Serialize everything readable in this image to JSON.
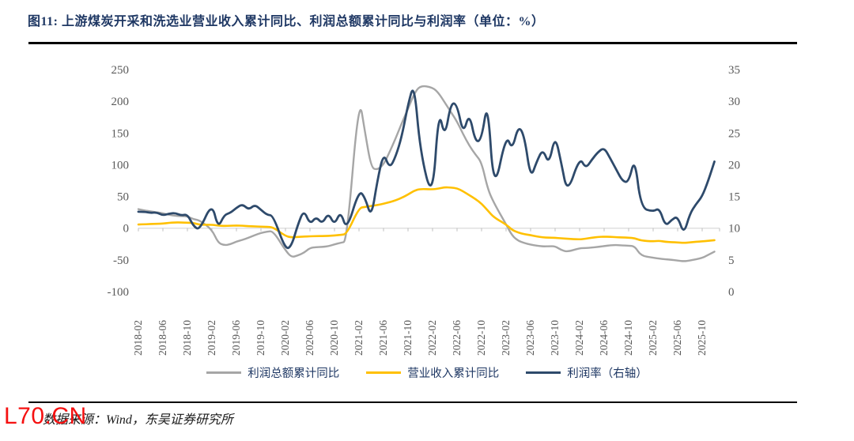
{
  "figure": {
    "title": "图11:  上游煤炭开采和洗选业营业收入累计同比、利润总额累计同比与利润率（单位：%）",
    "title_color": "#1f3864",
    "source_note": "数据来源：Wind，东吴证券研究所",
    "watermark": "L70.CN",
    "watermark_color": "#f51111"
  },
  "legend": {
    "items": [
      {
        "label": "利润总额累计同比",
        "color": "#a6a6a6"
      },
      {
        "label": "营业收入累计同比",
        "color": "#ffc000"
      },
      {
        "label": "利润率（右轴）",
        "color": "#2e4a6b"
      }
    ],
    "text_color": "#1f3864"
  },
  "chart_data": {
    "type": "line",
    "title": "上游煤炭开采和洗选业营业收入累计同比、利润总额累计同比与利润率",
    "unit": "%",
    "x_start": "2018-02",
    "x_month_range": [
      2,
      12
    ],
    "x_tick_labels": [
      "2018-02",
      "2018-06",
      "2018-10",
      "2019-02",
      "2019-06",
      "2019-10",
      "2020-02",
      "2020-06",
      "2020-10",
      "2021-02",
      "2021-06",
      "2021-10",
      "2022-02",
      "2022-06",
      "2022-10",
      "2023-02",
      "2023-06",
      "2023-10",
      "2024-02",
      "2024-06",
      "2024-10",
      "2025-02",
      "2025-06",
      "2025-10"
    ],
    "ylim_left": [
      -100,
      250
    ],
    "yticks_left": [
      250,
      200,
      150,
      100,
      50,
      0,
      -50,
      -100
    ],
    "ylim_right": [
      0,
      35
    ],
    "yticks_right": [
      35,
      30,
      25,
      20,
      15,
      10,
      5,
      0
    ],
    "grid": "zero-line-only",
    "legend_position": "bottom",
    "axis_text_color": "#595959",
    "gridline_color": "#d9d9d9",
    "tick_color": "#bfbfbf",
    "series": [
      {
        "name": "利润总额累计同比",
        "axis": "left",
        "color": "#a6a6a6",
        "width": 2.4,
        "values": [
          30,
          28,
          26.5,
          25,
          23.5,
          21,
          19.5,
          19,
          18.7,
          14,
          12.4,
          -2,
          -23,
          -27,
          -25.5,
          -21,
          -18.5,
          -15,
          -11,
          -7.5,
          -5.5,
          -4.5,
          -35,
          -46,
          -43,
          -39,
          -31,
          -30,
          -29.5,
          -28.5,
          -25.5,
          -23,
          -21,
          210,
          150,
          95,
          92,
          100,
          120,
          142,
          166,
          188,
          212,
          225,
          222,
          213,
          198,
          183,
          168,
          148,
          130,
          116,
          104,
          62,
          40,
          6,
          -12,
          -20,
          -23.5,
          -26,
          -27.5,
          -28.8,
          -28.5,
          -28.4,
          -34.4,
          -37.3,
          -31.5,
          -31.3,
          -30.5,
          -29.5,
          -28.2,
          -27,
          -26.5,
          -27.2,
          -27.6,
          -28.5,
          -43.5,
          -46.5,
          -48,
          -49,
          -49.8,
          -51,
          -52.2,
          -51,
          -49,
          -46.9,
          -42,
          -37
        ]
      },
      {
        "name": "营业收入累计同比",
        "axis": "left",
        "color": "#ffc000",
        "width": 2.6,
        "values": [
          5.8,
          6.2,
          6.5,
          7.0,
          7.2,
          8.5,
          9.1,
          9.0,
          8.6,
          8.2,
          5.3,
          5.5,
          4.0,
          3.6,
          3.8,
          4.2,
          3.8,
          3.2,
          2.8,
          2.4,
          2.0,
          1.5,
          -12.5,
          -14.5,
          -13.8,
          -13.2,
          -12.8,
          -12.5,
          -12.4,
          -12.2,
          -11.5,
          -10.5,
          -9.3,
          32,
          33.5,
          35,
          36.5,
          38.5,
          41,
          44,
          48,
          53,
          59,
          62,
          61,
          62.5,
          64.5,
          64,
          63,
          58,
          52,
          46,
          38.6,
          28,
          17,
          6,
          -3,
          -7,
          -9.5,
          -11,
          -13,
          -14.5,
          -15,
          -15.2,
          -16,
          -16.6,
          -17.8,
          -16.5,
          -15,
          -13.8,
          -13.4,
          -13.6,
          -14.2,
          -14.6,
          -15,
          -15.8,
          -19.5,
          -20.8,
          -19.8,
          -21.5,
          -22,
          -22.4,
          -23.3,
          -22.3,
          -21.5,
          -20.8,
          -19.9,
          -19
        ]
      },
      {
        "name": "利润率（右轴）",
        "axis": "right",
        "color": "#2e4a6b",
        "width": 2.8,
        "values": [
          12.6,
          12.6,
          12.4,
          12.5,
          12.0,
          12.3,
          12.4,
          12.0,
          12.2,
          10.3,
          9.7,
          14.0,
          10.0,
          12.1,
          12.4,
          13.2,
          13.8,
          12.9,
          13.7,
          12.9,
          12.1,
          12.0,
          6.6,
          7.2,
          10.5,
          12.9,
          10.6,
          11.8,
          10.7,
          12.4,
          10.5,
          12.7,
          9.6,
          16.0,
          14.8,
          11.6,
          17.5,
          21.9,
          19.4,
          21.3,
          24.5,
          29.5,
          33.0,
          22.0,
          14.2,
          28.8,
          24.2,
          29.8,
          29.5,
          24.8,
          28.2,
          23.5,
          24.0,
          30.3,
          15.3,
          24.8,
          22.3,
          26.2,
          24.5,
          17.8,
          20.5,
          22.5,
          20.0,
          24.7,
          20.3,
          15.4,
          21.2,
          19.4,
          20.8,
          22.0,
          22.7,
          21.0,
          19.2,
          17.4,
          17.2,
          21.2,
          13.2,
          12.6,
          13.2,
          10.3,
          11.3,
          11.9,
          9.0,
          12.3,
          13.8,
          15.0,
          17.5,
          20.5
        ]
      }
    ]
  }
}
